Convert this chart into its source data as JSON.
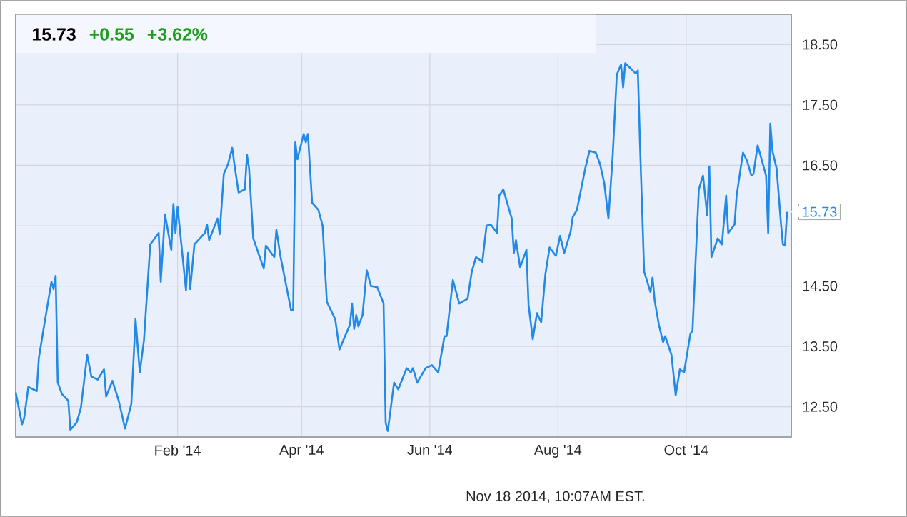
{
  "chart_data": {
    "type": "line",
    "grid": true,
    "marker": "none",
    "line_style": "solid",
    "xlim": [
      "2013-11-16",
      "2014-11-20"
    ],
    "xticks": [
      {
        "value": "2014-02-01",
        "label": "Feb '14"
      },
      {
        "value": "2014-04-01",
        "label": "Apr '14"
      },
      {
        "value": "2014-06-01",
        "label": "Jun '14"
      },
      {
        "value": "2014-08-01",
        "label": "Aug '14"
      },
      {
        "value": "2014-10-01",
        "label": "Oct '14"
      }
    ],
    "ylim": [
      12.0,
      19.0
    ],
    "yticks": [
      {
        "value": 12.5,
        "label": "12.50"
      },
      {
        "value": 13.5,
        "label": "13.50"
      },
      {
        "value": 14.5,
        "label": "14.50"
      },
      {
        "value": 15.5,
        "label": null
      },
      {
        "value": 16.5,
        "label": "16.50"
      },
      {
        "value": 17.5,
        "label": "17.50"
      },
      {
        "value": 18.5,
        "label": "18.50"
      }
    ],
    "annotations": [
      "15.73",
      "+0.55",
      "+3.62%",
      "Nov 18 2014, 10:07AM EST.",
      {
        "text": "15.73",
        "x": "2014-11-18",
        "y": 15.73
      }
    ],
    "x": [
      "2013-11-16",
      "2013-11-19",
      "2013-11-20",
      "2013-11-22",
      "2013-11-26",
      "2013-11-27",
      "2013-11-30",
      "2013-12-03",
      "2013-12-04",
      "2013-12-05",
      "2013-12-06",
      "2013-12-08",
      "2013-12-11",
      "2013-12-12",
      "2013-12-15",
      "2013-12-17",
      "2013-12-20",
      "2013-12-22",
      "2013-12-25",
      "2013-12-28",
      "2013-12-29",
      "2014-01-01",
      "2014-01-04",
      "2014-01-07",
      "2014-01-10",
      "2014-01-12",
      "2014-01-14",
      "2014-01-16",
      "2014-01-19",
      "2014-01-23",
      "2014-01-24",
      "2014-01-26",
      "2014-01-29",
      "2014-01-30",
      "2014-01-31",
      "2014-02-01",
      "2014-02-05",
      "2014-02-06",
      "2014-02-07",
      "2014-02-09",
      "2014-02-14",
      "2014-02-15",
      "2014-02-16",
      "2014-02-20",
      "2014-02-21",
      "2014-02-23",
      "2014-02-25",
      "2014-02-27",
      "2014-02-28",
      "2014-03-02",
      "2014-03-05",
      "2014-03-06",
      "2014-03-07",
      "2014-03-09",
      "2014-03-14",
      "2014-03-15",
      "2014-03-19",
      "2014-03-20",
      "2014-03-22",
      "2014-03-27",
      "2014-03-28",
      "2014-03-29",
      "2014-03-30",
      "2014-04-02",
      "2014-04-03",
      "2014-04-04",
      "2014-04-06",
      "2014-04-09",
      "2014-04-11",
      "2014-04-13",
      "2014-04-17",
      "2014-04-19",
      "2014-04-24",
      "2014-04-25",
      "2014-04-26",
      "2014-04-27",
      "2014-04-28",
      "2014-04-30",
      "2014-05-02",
      "2014-05-04",
      "2014-05-07",
      "2014-05-10",
      "2014-05-11",
      "2014-05-12",
      "2014-05-15",
      "2014-05-17",
      "2014-05-21",
      "2014-05-23",
      "2014-05-24",
      "2014-05-26",
      "2014-05-30",
      "2014-06-02",
      "2014-06-05",
      "2014-06-08",
      "2014-06-09",
      "2014-06-12",
      "2014-06-15",
      "2014-06-19",
      "2014-06-21",
      "2014-06-23",
      "2014-06-26",
      "2014-06-28",
      "2014-06-30",
      "2014-07-03",
      "2014-07-04",
      "2014-07-06",
      "2014-07-10",
      "2014-07-11",
      "2014-07-12",
      "2014-07-14",
      "2014-07-17",
      "2014-07-18",
      "2014-07-20",
      "2014-07-22",
      "2014-07-24",
      "2014-07-26",
      "2014-07-28",
      "2014-07-31",
      "2014-08-02",
      "2014-08-04",
      "2014-08-07",
      "2014-08-08",
      "2014-08-10",
      "2014-08-14",
      "2014-08-16",
      "2014-08-19",
      "2014-08-21",
      "2014-08-23",
      "2014-08-25",
      "2014-08-27",
      "2014-08-29",
      "2014-08-31",
      "2014-09-01",
      "2014-09-02",
      "2014-09-07",
      "2014-09-08",
      "2014-09-09",
      "2014-09-11",
      "2014-09-14",
      "2014-09-15",
      "2014-09-16",
      "2014-09-18",
      "2014-09-20",
      "2014-09-21",
      "2014-09-24",
      "2014-09-26",
      "2014-09-28",
      "2014-09-30",
      "2014-10-03",
      "2014-10-04",
      "2014-10-07",
      "2014-10-09",
      "2014-10-11",
      "2014-10-12",
      "2014-10-13",
      "2014-10-16",
      "2014-10-18",
      "2014-10-20",
      "2014-10-21",
      "2014-10-24",
      "2014-10-25",
      "2014-10-28",
      "2014-10-30",
      "2014-11-01",
      "2014-11-02",
      "2014-11-04",
      "2014-11-08",
      "2014-11-09",
      "2014-11-10",
      "2014-11-11",
      "2014-11-13",
      "2014-11-15",
      "2014-11-16",
      "2014-11-17",
      "2014-11-18"
    ],
    "series": [
      {
        "color": "#2289e6",
        "values": [
          12.74,
          12.21,
          12.31,
          12.83,
          12.76,
          13.31,
          13.95,
          14.57,
          14.45,
          14.67,
          12.9,
          12.71,
          12.6,
          12.12,
          12.24,
          12.48,
          13.36,
          13.0,
          12.95,
          13.12,
          12.67,
          12.93,
          12.6,
          12.14,
          12.55,
          13.95,
          13.07,
          13.6,
          15.19,
          15.38,
          14.57,
          15.69,
          15.1,
          15.86,
          15.38,
          15.81,
          14.43,
          15.05,
          14.45,
          15.19,
          15.38,
          15.52,
          15.26,
          15.62,
          15.36,
          16.36,
          16.52,
          16.79,
          16.52,
          16.05,
          16.1,
          16.67,
          16.45,
          15.29,
          14.79,
          15.17,
          14.98,
          15.43,
          14.98,
          14.1,
          14.1,
          16.88,
          16.6,
          17.02,
          16.88,
          17.02,
          15.88,
          15.76,
          15.5,
          14.24,
          13.95,
          13.45,
          13.86,
          14.21,
          13.79,
          14.02,
          13.83,
          14.02,
          14.76,
          14.5,
          14.48,
          14.21,
          12.24,
          12.1,
          12.9,
          12.79,
          13.14,
          13.07,
          13.14,
          12.9,
          13.14,
          13.19,
          13.07,
          13.67,
          13.67,
          14.6,
          14.21,
          14.29,
          14.74,
          14.98,
          14.9,
          15.5,
          15.52,
          15.38,
          16.0,
          16.1,
          15.62,
          15.05,
          15.26,
          14.81,
          15.1,
          14.19,
          13.62,
          14.05,
          13.9,
          14.69,
          15.14,
          15.0,
          15.33,
          15.05,
          15.4,
          15.64,
          15.76,
          16.45,
          16.74,
          16.71,
          16.52,
          16.21,
          15.62,
          16.64,
          18.0,
          18.17,
          17.79,
          18.19,
          18.02,
          18.07,
          16.88,
          14.74,
          14.4,
          14.64,
          14.26,
          13.86,
          13.57,
          13.67,
          13.36,
          12.69,
          13.12,
          13.07,
          13.71,
          13.76,
          16.1,
          16.33,
          15.67,
          16.48,
          14.98,
          15.29,
          15.19,
          16.0,
          15.38,
          15.52,
          16.0,
          16.71,
          16.57,
          16.33,
          16.36,
          16.83,
          16.33,
          15.38,
          17.19,
          16.74,
          16.45,
          15.57,
          15.19,
          15.17,
          15.73
        ]
      }
    ]
  }
}
